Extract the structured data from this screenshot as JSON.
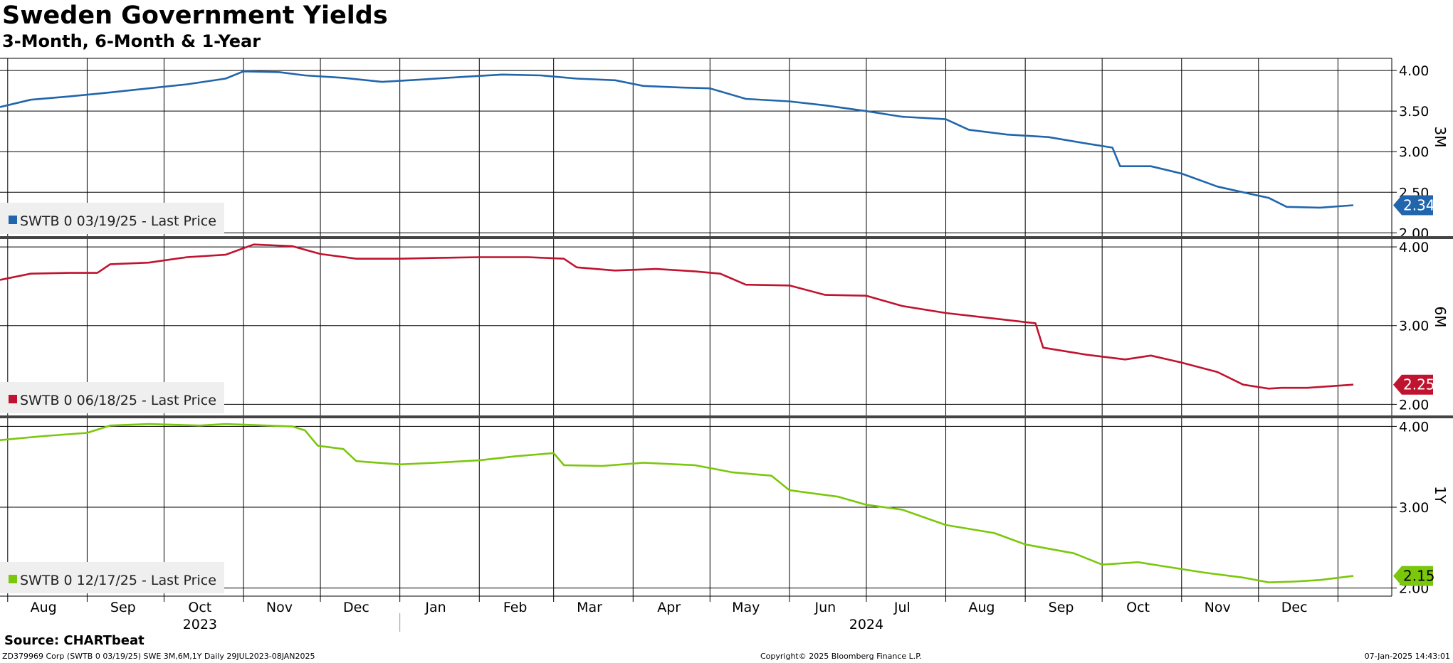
{
  "header": {
    "title": "Sweden Government Yields",
    "subtitle": "3-Month, 6-Month & 1-Year"
  },
  "footer": {
    "source": "Source: CHARTbeat",
    "left": "ZD379969 Corp (SWTB 0 03/19/25) SWE 3M,6M,1Y  Daily 29JUL2023-08JAN2025",
    "center": "Copyright© 2025 Bloomberg Finance L.P.",
    "right": "07-Jan-2025 14:43:01"
  },
  "x_axis": {
    "months": [
      {
        "label": "Aug",
        "date": "2023-08-15"
      },
      {
        "label": "Sep",
        "date": "2023-09-15"
      },
      {
        "label": "Oct",
        "date": "2023-10-15"
      },
      {
        "label": "Nov",
        "date": "2023-11-15"
      },
      {
        "label": "Dec",
        "date": "2023-12-15"
      },
      {
        "label": "Jan",
        "date": "2024-01-15"
      },
      {
        "label": "Feb",
        "date": "2024-02-15"
      },
      {
        "label": "Mar",
        "date": "2024-03-15"
      },
      {
        "label": "Apr",
        "date": "2024-04-15"
      },
      {
        "label": "May",
        "date": "2024-05-15"
      },
      {
        "label": "Jun",
        "date": "2024-06-15"
      },
      {
        "label": "Jul",
        "date": "2024-07-15"
      },
      {
        "label": "Aug",
        "date": "2024-08-15"
      },
      {
        "label": "Sep",
        "date": "2024-09-15"
      },
      {
        "label": "Oct",
        "date": "2024-10-15"
      },
      {
        "label": "Nov",
        "date": "2024-11-15"
      },
      {
        "label": "Dec",
        "date": "2024-12-15"
      }
    ],
    "years": [
      {
        "label": "2023",
        "date": "2023-10-15"
      },
      {
        "label": "2024",
        "date": "2024-07-01"
      }
    ],
    "gridlines": [
      "2023-08-01",
      "2023-09-01",
      "2023-10-01",
      "2023-11-01",
      "2023-12-01",
      "2024-01-01",
      "2024-02-01",
      "2024-03-01",
      "2024-04-01",
      "2024-05-01",
      "2024-06-01",
      "2024-07-01",
      "2024-08-01",
      "2024-09-01",
      "2024-10-01",
      "2024-11-01",
      "2024-12-01",
      "2025-01-01"
    ],
    "year_divider": "2024-01-01"
  },
  "chart_data": [
    {
      "type": "line",
      "side_label": "3M",
      "color": "#2166ac",
      "legend": "SWTB 0 03/19/25 - Last Price",
      "last_value": "2.34",
      "ylim": [
        1.95,
        4.15
      ],
      "yticks": [
        "2.00",
        "2.50",
        "3.00",
        "3.50",
        "4.00"
      ],
      "series": [
        {
          "name": "SWTB 0 03/19/25 - Last Price",
          "points": [
            [
              "2023-07-29",
              3.55
            ],
            [
              "2023-08-10",
              3.64
            ],
            [
              "2023-08-25",
              3.68
            ],
            [
              "2023-09-10",
              3.73
            ],
            [
              "2023-09-25",
              3.78
            ],
            [
              "2023-10-10",
              3.83
            ],
            [
              "2023-10-25",
              3.9
            ],
            [
              "2023-11-01",
              3.99
            ],
            [
              "2023-11-15",
              3.98
            ],
            [
              "2023-11-25",
              3.94
            ],
            [
              "2023-12-10",
              3.91
            ],
            [
              "2023-12-25",
              3.86
            ],
            [
              "2024-01-10",
              3.89
            ],
            [
              "2024-01-25",
              3.92
            ],
            [
              "2024-02-10",
              3.95
            ],
            [
              "2024-02-25",
              3.94
            ],
            [
              "2024-03-10",
              3.9
            ],
            [
              "2024-03-25",
              3.88
            ],
            [
              "2024-04-05",
              3.81
            ],
            [
              "2024-04-20",
              3.79
            ],
            [
              "2024-05-01",
              3.78
            ],
            [
              "2024-05-15",
              3.65
            ],
            [
              "2024-06-01",
              3.62
            ],
            [
              "2024-06-15",
              3.57
            ],
            [
              "2024-07-01",
              3.5
            ],
            [
              "2024-07-15",
              3.43
            ],
            [
              "2024-08-01",
              3.4
            ],
            [
              "2024-08-10",
              3.27
            ],
            [
              "2024-08-25",
              3.21
            ],
            [
              "2024-09-10",
              3.18
            ],
            [
              "2024-09-25",
              3.1
            ],
            [
              "2024-10-05",
              3.05
            ],
            [
              "2024-10-08",
              2.82
            ],
            [
              "2024-10-20",
              2.82
            ],
            [
              "2024-11-01",
              2.73
            ],
            [
              "2024-11-15",
              2.57
            ],
            [
              "2024-11-25",
              2.5
            ],
            [
              "2024-12-05",
              2.43
            ],
            [
              "2024-12-12",
              2.32
            ],
            [
              "2024-12-25",
              2.31
            ],
            [
              "2025-01-07",
              2.34
            ]
          ]
        }
      ]
    },
    {
      "type": "line",
      "side_label": "6M",
      "color": "#c0132f",
      "legend": "SWTB 0 06/18/25 - Last Price",
      "last_value": "2.25",
      "ylim": [
        1.85,
        4.1
      ],
      "yticks": [
        "2.00",
        "3.00",
        "4.00"
      ],
      "series": [
        {
          "name": "SWTB 0 06/18/25 - Last Price",
          "points": [
            [
              "2023-07-29",
              3.58
            ],
            [
              "2023-08-10",
              3.66
            ],
            [
              "2023-08-25",
              3.67
            ],
            [
              "2023-09-05",
              3.67
            ],
            [
              "2023-09-10",
              3.78
            ],
            [
              "2023-09-25",
              3.8
            ],
            [
              "2023-10-10",
              3.87
            ],
            [
              "2023-10-25",
              3.9
            ],
            [
              "2023-11-05",
              4.03
            ],
            [
              "2023-11-20",
              4.01
            ],
            [
              "2023-12-01",
              3.91
            ],
            [
              "2023-12-15",
              3.85
            ],
            [
              "2024-01-01",
              3.85
            ],
            [
              "2024-01-15",
              3.86
            ],
            [
              "2024-02-01",
              3.87
            ],
            [
              "2024-02-20",
              3.87
            ],
            [
              "2024-03-05",
              3.85
            ],
            [
              "2024-03-10",
              3.74
            ],
            [
              "2024-03-25",
              3.7
            ],
            [
              "2024-04-10",
              3.72
            ],
            [
              "2024-04-25",
              3.69
            ],
            [
              "2024-05-05",
              3.66
            ],
            [
              "2024-05-15",
              3.52
            ],
            [
              "2024-06-01",
              3.51
            ],
            [
              "2024-06-15",
              3.39
            ],
            [
              "2024-07-01",
              3.38
            ],
            [
              "2024-07-15",
              3.25
            ],
            [
              "2024-08-01",
              3.16
            ],
            [
              "2024-08-20",
              3.09
            ],
            [
              "2024-09-05",
              3.03
            ],
            [
              "2024-09-08",
              2.72
            ],
            [
              "2024-09-25",
              2.63
            ],
            [
              "2024-10-10",
              2.57
            ],
            [
              "2024-10-20",
              2.62
            ],
            [
              "2024-11-01",
              2.53
            ],
            [
              "2024-11-15",
              2.41
            ],
            [
              "2024-11-25",
              2.25
            ],
            [
              "2024-12-05",
              2.2
            ],
            [
              "2024-12-10",
              2.21
            ],
            [
              "2024-12-20",
              2.21
            ],
            [
              "2025-01-07",
              2.25
            ]
          ]
        }
      ]
    },
    {
      "type": "line",
      "side_label": "1Y",
      "color": "#7ac70c",
      "legend": "SWTB 0 12/17/25 - Last Price",
      "last_value": "2.15",
      "ylim": [
        1.9,
        4.1
      ],
      "yticks": [
        "2.00",
        "3.00",
        "4.00"
      ],
      "series": [
        {
          "name": "SWTB 0 12/17/25 - Last Price",
          "points": [
            [
              "2023-07-29",
              3.83
            ],
            [
              "2023-08-15",
              3.88
            ],
            [
              "2023-09-01",
              3.92
            ],
            [
              "2023-09-10",
              4.01
            ],
            [
              "2023-09-25",
              4.03
            ],
            [
              "2023-10-15",
              4.01
            ],
            [
              "2023-10-25",
              4.03
            ],
            [
              "2023-11-10",
              4.01
            ],
            [
              "2023-11-20",
              4.0
            ],
            [
              "2023-11-25",
              3.95
            ],
            [
              "2023-11-30",
              3.76
            ],
            [
              "2023-12-10",
              3.72
            ],
            [
              "2023-12-15",
              3.57
            ],
            [
              "2024-01-01",
              3.53
            ],
            [
              "2024-01-15",
              3.55
            ],
            [
              "2024-02-01",
              3.58
            ],
            [
              "2024-02-15",
              3.63
            ],
            [
              "2024-03-01",
              3.67
            ],
            [
              "2024-03-05",
              3.52
            ],
            [
              "2024-03-20",
              3.51
            ],
            [
              "2024-04-05",
              3.55
            ],
            [
              "2024-04-25",
              3.52
            ],
            [
              "2024-05-10",
              3.43
            ],
            [
              "2024-05-25",
              3.39
            ],
            [
              "2024-06-01",
              3.21
            ],
            [
              "2024-06-20",
              3.13
            ],
            [
              "2024-07-01",
              3.03
            ],
            [
              "2024-07-15",
              2.97
            ],
            [
              "2024-08-01",
              2.78
            ],
            [
              "2024-08-20",
              2.68
            ],
            [
              "2024-09-01",
              2.54
            ],
            [
              "2024-09-20",
              2.43
            ],
            [
              "2024-10-01",
              2.29
            ],
            [
              "2024-10-15",
              2.32
            ],
            [
              "2024-10-25",
              2.27
            ],
            [
              "2024-11-10",
              2.19
            ],
            [
              "2024-11-25",
              2.13
            ],
            [
              "2024-12-05",
              2.07
            ],
            [
              "2024-12-15",
              2.08
            ],
            [
              "2024-12-25",
              2.1
            ],
            [
              "2025-01-07",
              2.15
            ]
          ]
        }
      ]
    }
  ]
}
